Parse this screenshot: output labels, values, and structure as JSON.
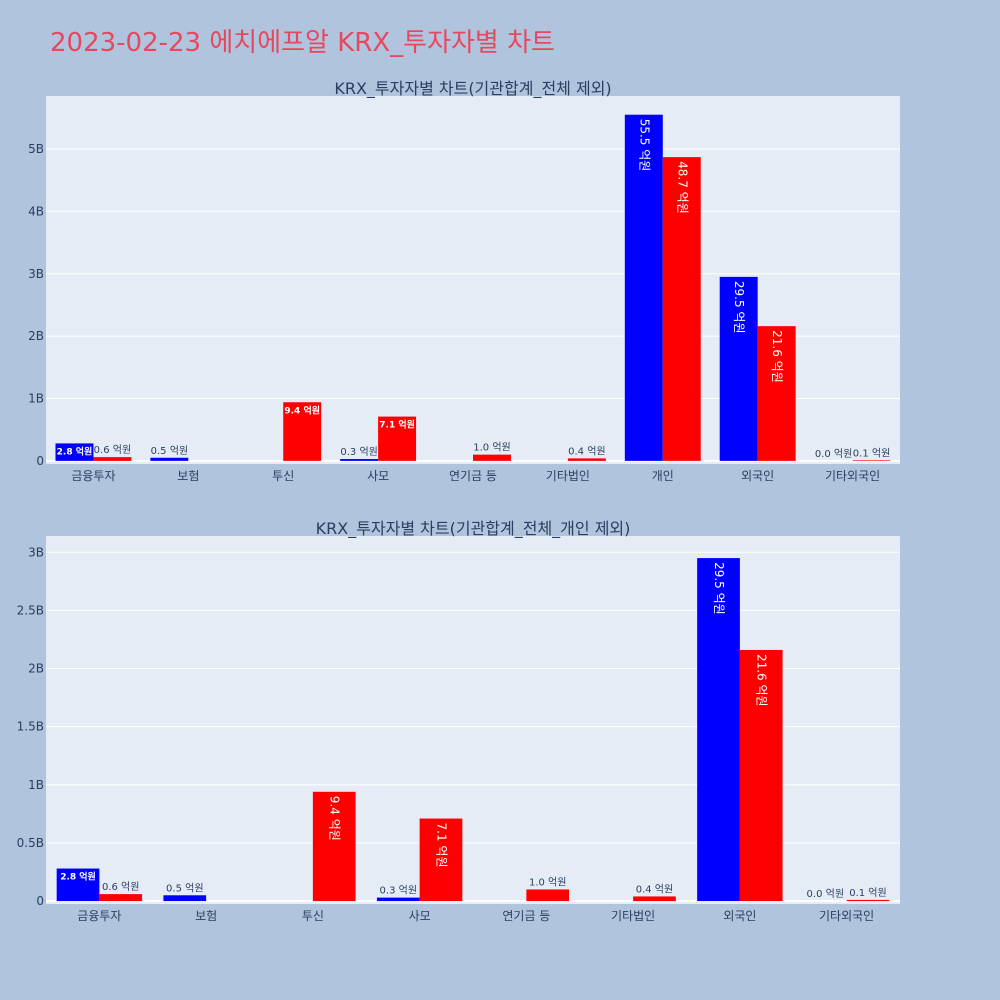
{
  "title": "2023-02-23 에치에프알 KRX_투자자별 차트",
  "colors": {
    "background": "#b0c4de",
    "plot_bg": "#e5ecf6",
    "grid": "#ffffff",
    "title": "#e8485f",
    "text": "#2a3f5f",
    "series_blue": "#0000ff",
    "series_red": "#ff0000"
  },
  "chart_data": [
    {
      "type": "bar",
      "title": "KRX_투자자별 차트(기관합계_전체 제외)",
      "categories": [
        "금융투자",
        "보험",
        "투신",
        "사모",
        "연기금 등",
        "기타법인",
        "개인",
        "외국인",
        "기타외국인"
      ],
      "series": [
        {
          "color": "#0000ff",
          "values": [
            280000000,
            50000000,
            0,
            30000000,
            0,
            0,
            5550000000,
            2950000000,
            0
          ],
          "labels": [
            "2.8 억원",
            "0.5 억원",
            "",
            "0.3 억원",
            "",
            "",
            "55.5 억원",
            "29.5 억원",
            "0.0 억원"
          ]
        },
        {
          "color": "#ff0000",
          "values": [
            60000000,
            0,
            940000000,
            710000000,
            100000000,
            40000000,
            4870000000,
            2160000000,
            10000000
          ],
          "labels": [
            "0.6 억원",
            "",
            "9.4 억원",
            "7.1 억원",
            "1.0 억원",
            "0.4 억원",
            "48.7 억원",
            "21.6 억원",
            "0.1 억원"
          ]
        }
      ],
      "yticks": [
        0,
        1000000000,
        2000000000,
        3000000000,
        4000000000,
        5000000000
      ],
      "ytick_labels": [
        "0",
        "1B",
        "2B",
        "3B",
        "4B",
        "5B"
      ],
      "ylim": [
        -50000000,
        5850000000
      ],
      "grid": true,
      "legend": "none"
    },
    {
      "type": "bar",
      "title": "KRX_투자자별 차트(기관합계_전체_개인 제외)",
      "categories": [
        "금융투자",
        "보험",
        "투신",
        "사모",
        "연기금 등",
        "기타법인",
        "외국인",
        "기타외국인"
      ],
      "series": [
        {
          "color": "#0000ff",
          "values": [
            280000000,
            50000000,
            0,
            30000000,
            0,
            0,
            2950000000,
            0
          ],
          "labels": [
            "2.8 억원",
            "0.5 억원",
            "",
            "0.3 억원",
            "",
            "",
            "29.5 억원",
            "0.0 억원"
          ]
        },
        {
          "color": "#ff0000",
          "values": [
            60000000,
            0,
            940000000,
            710000000,
            100000000,
            40000000,
            2160000000,
            10000000
          ],
          "labels": [
            "0.6 억원",
            "",
            "9.4 억원",
            "7.1 억원",
            "1.0 억원",
            "0.4 억원",
            "21.6 억원",
            "0.1 억원"
          ]
        }
      ],
      "yticks": [
        0,
        500000000,
        1000000000,
        1500000000,
        2000000000,
        2500000000,
        3000000000
      ],
      "ytick_labels": [
        "0",
        "0.5B",
        "1B",
        "1.5B",
        "2B",
        "2.5B",
        "3B"
      ],
      "ylim": [
        -25000000,
        3140000000
      ],
      "grid": true,
      "legend": "none"
    }
  ]
}
